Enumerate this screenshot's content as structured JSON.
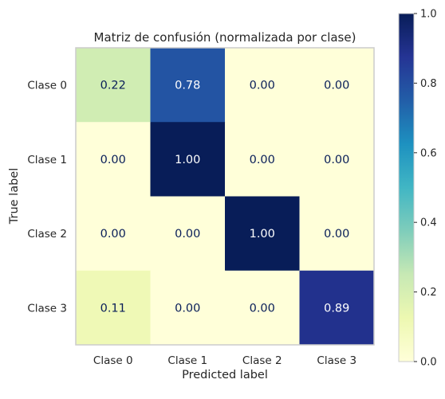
{
  "chart_data": {
    "type": "heatmap",
    "title": "Matriz de confusión (normalizada por clase)",
    "xlabel": "Predicted label",
    "ylabel": "True label",
    "x_categories": [
      "Clase 0",
      "Clase 1",
      "Clase 2",
      "Clase 3"
    ],
    "y_categories": [
      "Clase 0",
      "Clase 1",
      "Clase 2",
      "Clase 3"
    ],
    "values": [
      [
        0.22,
        0.78,
        0.0,
        0.0
      ],
      [
        0.0,
        1.0,
        0.0,
        0.0
      ],
      [
        0.0,
        0.0,
        1.0,
        0.0
      ],
      [
        0.11,
        0.0,
        0.0,
        0.89
      ]
    ],
    "value_labels": [
      [
        "0.22",
        "0.78",
        "0.00",
        "0.00"
      ],
      [
        "0.00",
        "1.00",
        "0.00",
        "0.00"
      ],
      [
        "0.00",
        "0.00",
        "1.00",
        "0.00"
      ],
      [
        "0.11",
        "0.00",
        "0.00",
        "0.89"
      ]
    ],
    "colormap": "YlGnBu",
    "colorbar": {
      "range": [
        0.0,
        1.0
      ],
      "ticks": [
        "0.0",
        "0.2",
        "0.4",
        "0.6",
        "0.8",
        "1.0"
      ]
    },
    "grid": false
  }
}
